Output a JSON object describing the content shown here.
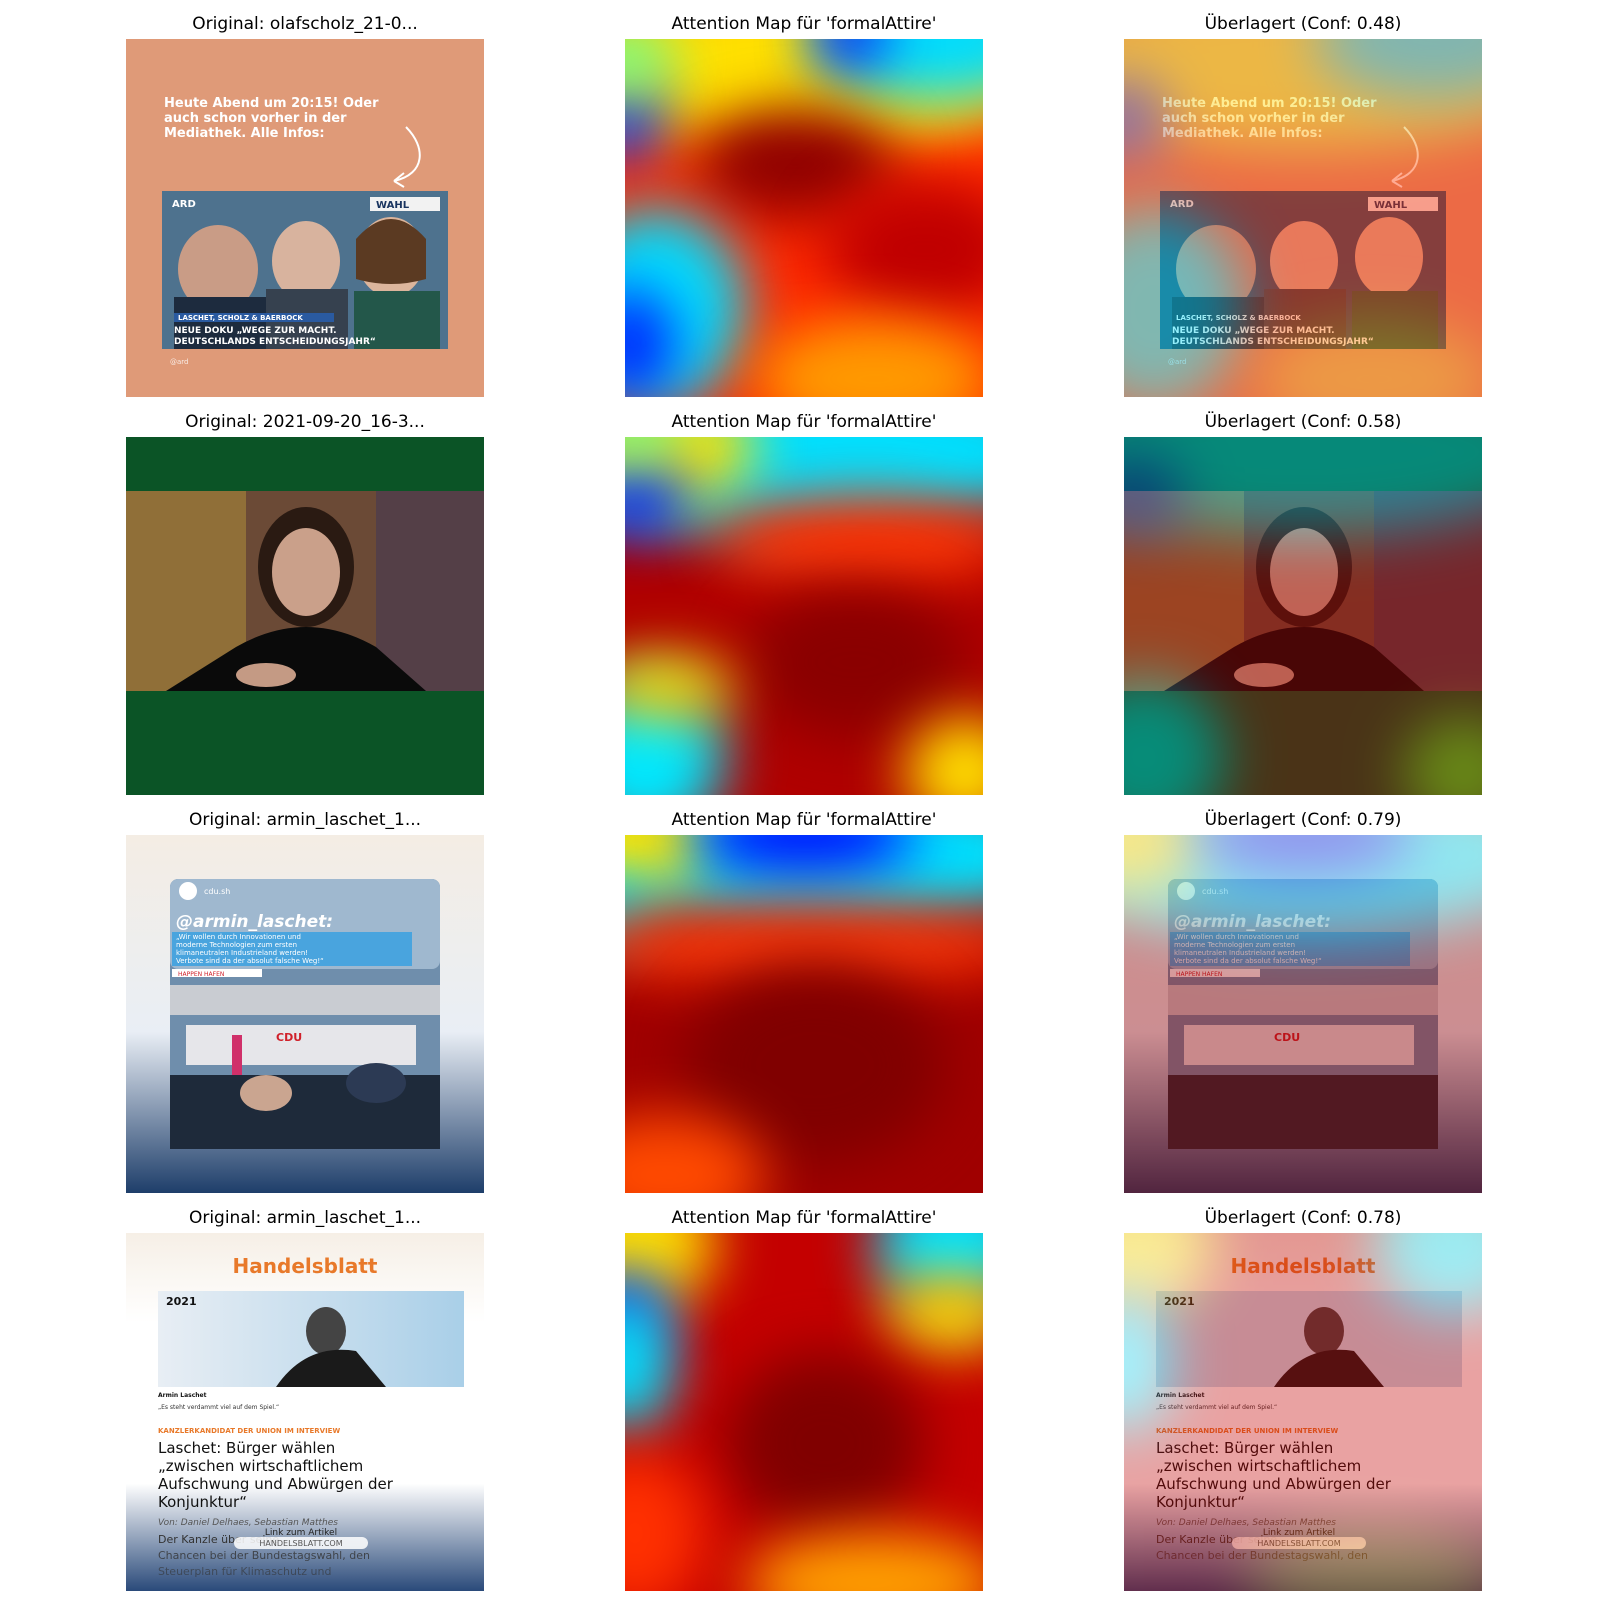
{
  "rows": [
    {
      "original_title": "Original: olafscholz_21-0...",
      "attention_title": "Attention Map für 'formalAttire'",
      "overlay_title": "Überlagert (Conf: 0.48)",
      "post_text": [
        "Heute Abend um 20:15! Oder",
        "auch schon vorher in der",
        "Mediathek. Alle Infos:"
      ],
      "logo_left": "ARD",
      "logo_right": "WAHL",
      "names_strip": "LASCHET, SCHOLZ & BAERBOCK",
      "headline": [
        "NEUE DOKU „WEGE ZUR MACHT.",
        "DEUTSCHLANDS ENTSCHEIDUNGSJAHR“"
      ],
      "credit": "@ard"
    },
    {
      "original_title": "Original: 2021-09-20_16-3...",
      "attention_title": "Attention Map für 'formalAttire'",
      "overlay_title": "Überlagert (Conf: 0.58)"
    },
    {
      "original_title": "Original: armin_laschet_1...",
      "attention_title": "Attention Map für 'formalAttire'",
      "overlay_title": "Überlagert (Conf: 0.79)",
      "handle": "@armin_laschet:",
      "account": "cdu.sh",
      "quote": [
        "„Wir wollen durch Innovationen und",
        "moderne Technologien zum ersten",
        "klimaneutralen Industrieland werden!",
        "Verbote sind da der absolut falsche Weg!“"
      ],
      "place": "HAPPEN HAFEN",
      "stage_sign": "CDU"
    },
    {
      "original_title": "Original: armin_laschet_1...",
      "attention_title": "Attention Map für 'formalAttire'",
      "overlay_title": "Überlagert (Conf: 0.78)",
      "brand": "Handelsblatt",
      "year": "2021",
      "caption_name": "Armin Laschet",
      "caption_quote": "„Es steht verdammt viel auf dem Spiel.“",
      "kicker": "KANZLERKANDIDAT DER UNION IM INTERVIEW",
      "headline": [
        "Laschet: Bürger wählen",
        "„zwischen wirtschaftlichem",
        "Aufschwung und Abwürgen der",
        "Konjunktur“"
      ],
      "byline": "Von: Daniel Delhaes, Sebastian Matthes",
      "body": [
        "Der Kanzle               über seine",
        "Chancen bei der Bundestagswahl, den",
        "Steuerplan für Klimaschutz und"
      ],
      "link_label": "Link zum Artikel",
      "link_url": "HANDELSBLATT.COM"
    }
  ],
  "colors": {
    "jet_dark_red": "#800000",
    "jet_red": "#ff1a00",
    "jet_yellow": "#ffea00",
    "jet_cyan": "#00e5ff",
    "jet_blue": "#0010ff"
  }
}
